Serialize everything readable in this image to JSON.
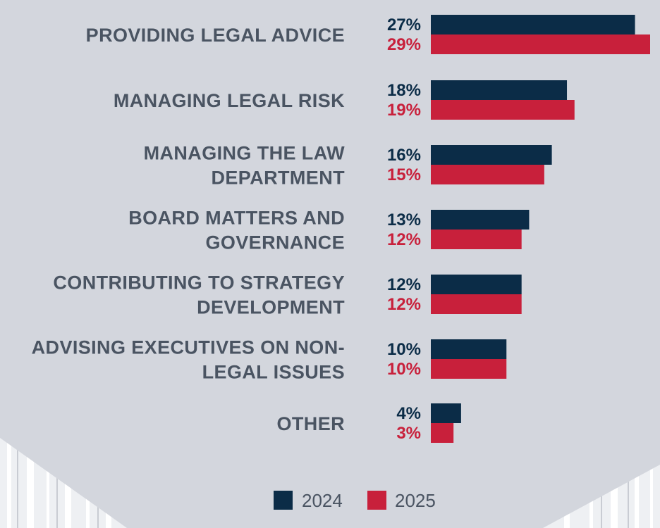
{
  "chart_data": {
    "type": "bar",
    "orientation": "horizontal",
    "categories": [
      [
        "PROVIDING LEGAL ADVICE"
      ],
      [
        "MANAGING LEGAL RISK"
      ],
      [
        "MANAGING THE LAW",
        "DEPARTMENT"
      ],
      [
        "BOARD MATTERS AND",
        "GOVERNANCE"
      ],
      [
        "CONTRIBUTING TO STRATEGY",
        "DEVELOPMENT"
      ],
      [
        "ADVISING EXECUTIVES ON NON-",
        "LEGAL ISSUES"
      ],
      [
        "OTHER"
      ]
    ],
    "series": [
      {
        "name": "2024",
        "color": "#0b2c47",
        "values": [
          27,
          18,
          16,
          13,
          12,
          10,
          4
        ],
        "labels": [
          "27%",
          "18%",
          "16%",
          "13%",
          "12%",
          "10%",
          "4%"
        ]
      },
      {
        "name": "2025",
        "color": "#c8203b",
        "values": [
          29,
          19,
          15,
          12,
          12,
          10,
          3
        ],
        "labels": [
          "29%",
          "19%",
          "15%",
          "12%",
          "12%",
          "10%",
          "3%"
        ]
      }
    ],
    "xlim": [
      0,
      29
    ],
    "legend_position": "bottom",
    "grid": false,
    "colors": {
      "background": "#d3d6dd",
      "label_text": "#4a5462"
    }
  }
}
